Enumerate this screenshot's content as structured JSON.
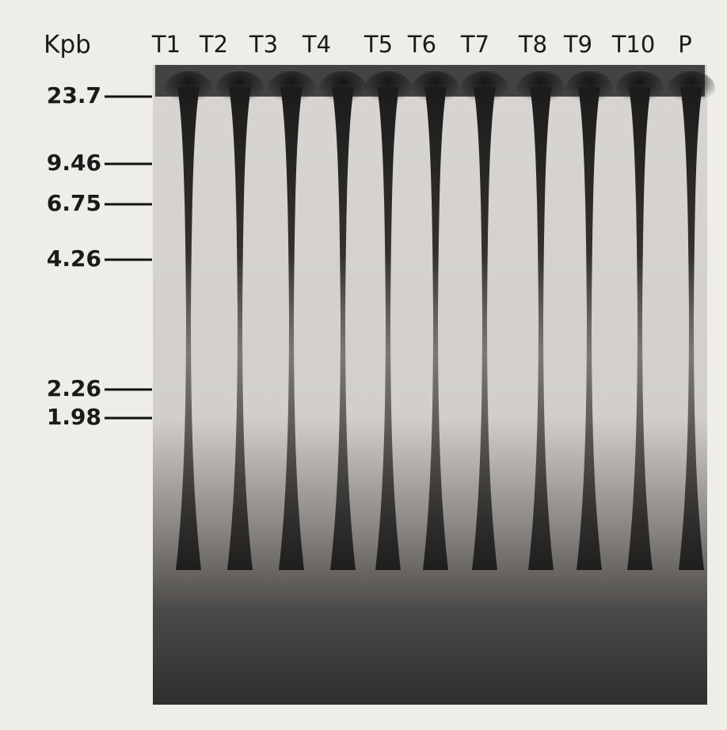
{
  "unit": "Kpb",
  "lanes": [
    "T1",
    "T2",
    "T3",
    "T4",
    "T5",
    "T6",
    "T7",
    "T8",
    "T9",
    "T10",
    "P"
  ],
  "markers": [
    "23.7",
    "9.46",
    "6.75",
    "4.26",
    "2.26",
    "1.98"
  ]
}
